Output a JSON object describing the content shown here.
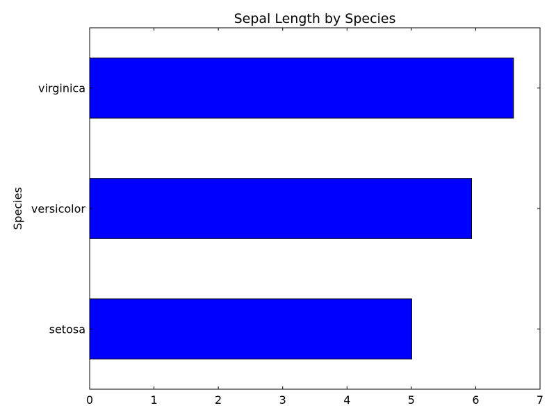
{
  "chart_data": {
    "type": "bar",
    "orientation": "horizontal",
    "title": "Sepal Length by Species",
    "xlabel": "",
    "ylabel": "Species",
    "categories": [
      "setosa",
      "versicolor",
      "virginica"
    ],
    "values": [
      5.006,
      5.936,
      6.588
    ],
    "xlim": [
      0,
      7
    ],
    "xticks": [
      "0",
      "1",
      "2",
      "3",
      "4",
      "5",
      "6",
      "7"
    ],
    "grid": false,
    "legend": "none",
    "colors": {
      "bar": "#0000ff",
      "bar_edge": "#000000",
      "axes": "#000000",
      "background": "#ffffff"
    }
  }
}
